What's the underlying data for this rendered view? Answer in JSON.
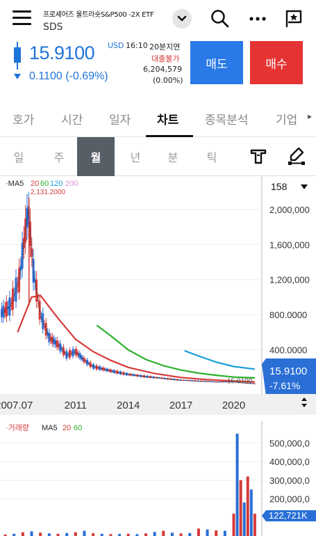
{
  "header": {
    "stock_name": "프로셰어즈 울트라숏S&P500 -2X ETF",
    "ticker": "SDS",
    "icons": [
      "menu-icon",
      "chevron-down-icon",
      "search-icon",
      "more-icon",
      "flag-star-icon"
    ]
  },
  "quote": {
    "price": "15.9100",
    "change": "0.1100 (-0.69%)",
    "currency": "USD",
    "time": "16:10",
    "delay": "20분지연",
    "margin_status": "대출불가",
    "volume": "6,204,579",
    "volume_pct": "(0.00%)",
    "sell_label": "매도",
    "buy_label": "매수",
    "colors": {
      "up": "#e63434",
      "down": "#1f74d9"
    }
  },
  "tabs": [
    "호가",
    "시간",
    "일자",
    "차트",
    "종목분석",
    "기업"
  ],
  "active_tab": "차트",
  "periods": [
    "일",
    "주",
    "월",
    "년",
    "분",
    "틱"
  ],
  "active_period": "월",
  "chart_data": [
    {
      "type": "line",
      "title": "",
      "legend": [
        "MA5",
        "20",
        "60",
        "120",
        "200"
      ],
      "legend_colors": [
        "#222222",
        "#d63a3a",
        "#2bb12b",
        "#1aa0d8",
        "#d98bd9"
      ],
      "max_label": "2,131.2000",
      "count_selector": "158",
      "y_ticks": [
        "2,000,000",
        "1,600,000",
        "1,200,000",
        "800.0000",
        "400.0000"
      ],
      "y_values": [
        2000,
        1600,
        1200,
        800,
        400
      ],
      "ylim": [
        0,
        2300
      ],
      "x_ticks": [
        "2007.07",
        "2011",
        "2014",
        "2017",
        "2020"
      ],
      "x_tick_years": [
        2007.5,
        2011,
        2014,
        2017,
        2020
      ],
      "xlim": [
        2006.7,
        2021.6
      ],
      "current_price_label": "15.9100",
      "current_change_label": "-7.61%",
      "inline_last_label": "15.9100",
      "series": [
        {
          "name": "MA20",
          "color": "#d63a3a",
          "points": [
            [
              2007.7,
              600
            ],
            [
              2008.5,
              1000
            ],
            [
              2009.0,
              1020
            ],
            [
              2010.0,
              760
            ],
            [
              2011.0,
              520
            ],
            [
              2012.0,
              380
            ],
            [
              2013.0,
              280
            ],
            [
              2014.0,
              200
            ],
            [
              2015.5,
              130
            ],
            [
              2017.0,
              85
            ],
            [
              2018.5,
              60
            ],
            [
              2020.0,
              45
            ],
            [
              2021.2,
              35
            ]
          ]
        },
        {
          "name": "MA60",
          "color": "#2bb12b",
          "points": [
            [
              2012.2,
              680
            ],
            [
              2013.0,
              560
            ],
            [
              2014.0,
              400
            ],
            [
              2015.0,
              290
            ],
            [
              2016.0,
              220
            ],
            [
              2017.0,
              170
            ],
            [
              2018.0,
              135
            ],
            [
              2019.0,
              110
            ],
            [
              2020.0,
              90
            ],
            [
              2021.2,
              80
            ]
          ]
        },
        {
          "name": "MA120",
          "color": "#1aa0d8",
          "points": [
            [
              2017.2,
              390
            ],
            [
              2018.0,
              330
            ],
            [
              2019.0,
              260
            ],
            [
              2020.0,
              210
            ],
            [
              2021.2,
              180
            ]
          ]
        },
        {
          "name": "MA5",
          "color": "#333333",
          "points": [
            [
              2006.8,
              820
            ],
            [
              2007.3,
              900
            ],
            [
              2007.8,
              1200
            ],
            [
              2008.3,
              2000
            ],
            [
              2008.6,
              1300
            ],
            [
              2009.0,
              800
            ],
            [
              2009.5,
              540
            ],
            [
              2010.0,
              460
            ],
            [
              2010.5,
              340
            ],
            [
              2011.0,
              380
            ],
            [
              2011.5,
              280
            ],
            [
              2012.0,
              210
            ],
            [
              2013.0,
              160
            ],
            [
              2014.0,
              120
            ],
            [
              2015.0,
              95
            ],
            [
              2016.0,
              75
            ],
            [
              2017.0,
              55
            ],
            [
              2018.0,
              45
            ],
            [
              2019.0,
              35
            ],
            [
              2020.0,
              40
            ],
            [
              2020.5,
              25
            ],
            [
              2021.2,
              16
            ]
          ]
        }
      ]
    },
    {
      "type": "bar",
      "title": "",
      "legend": [
        "거래량",
        "MA5",
        "20",
        "60"
      ],
      "legend_colors": [
        "#d63a3a",
        "#222222",
        "#d63a3a",
        "#2bb12b"
      ],
      "y_ticks": [
        "500,000,0",
        "400,000,0",
        "300,000,0",
        "200,000,0"
      ],
      "y_values": [
        500,
        400,
        300,
        200
      ],
      "ylim": [
        0,
        580
      ],
      "current_label": "122,721K",
      "xlim": [
        2006.7,
        2021.6
      ],
      "volumes": [
        [
          2007.0,
          8
        ],
        [
          2007.5,
          12
        ],
        [
          2008.0,
          20
        ],
        [
          2008.5,
          25
        ],
        [
          2009.0,
          18
        ],
        [
          2009.5,
          14
        ],
        [
          2010.0,
          12
        ],
        [
          2010.5,
          16
        ],
        [
          2011.0,
          20
        ],
        [
          2011.5,
          28
        ],
        [
          2012.0,
          15
        ],
        [
          2012.5,
          12
        ],
        [
          2013.0,
          10
        ],
        [
          2013.5,
          11
        ],
        [
          2014.0,
          12
        ],
        [
          2014.5,
          10
        ],
        [
          2015.0,
          14
        ],
        [
          2015.5,
          22
        ],
        [
          2016.0,
          28
        ],
        [
          2016.5,
          18
        ],
        [
          2017.0,
          14
        ],
        [
          2017.5,
          16
        ],
        [
          2018.0,
          40
        ],
        [
          2018.5,
          35
        ],
        [
          2019.0,
          30
        ],
        [
          2019.5,
          28
        ],
        [
          2020.0,
          120
        ],
        [
          2020.2,
          550
        ],
        [
          2020.4,
          300
        ],
        [
          2020.6,
          180
        ],
        [
          2020.8,
          320
        ],
        [
          2021.0,
          250
        ],
        [
          2021.2,
          120
        ]
      ]
    }
  ]
}
